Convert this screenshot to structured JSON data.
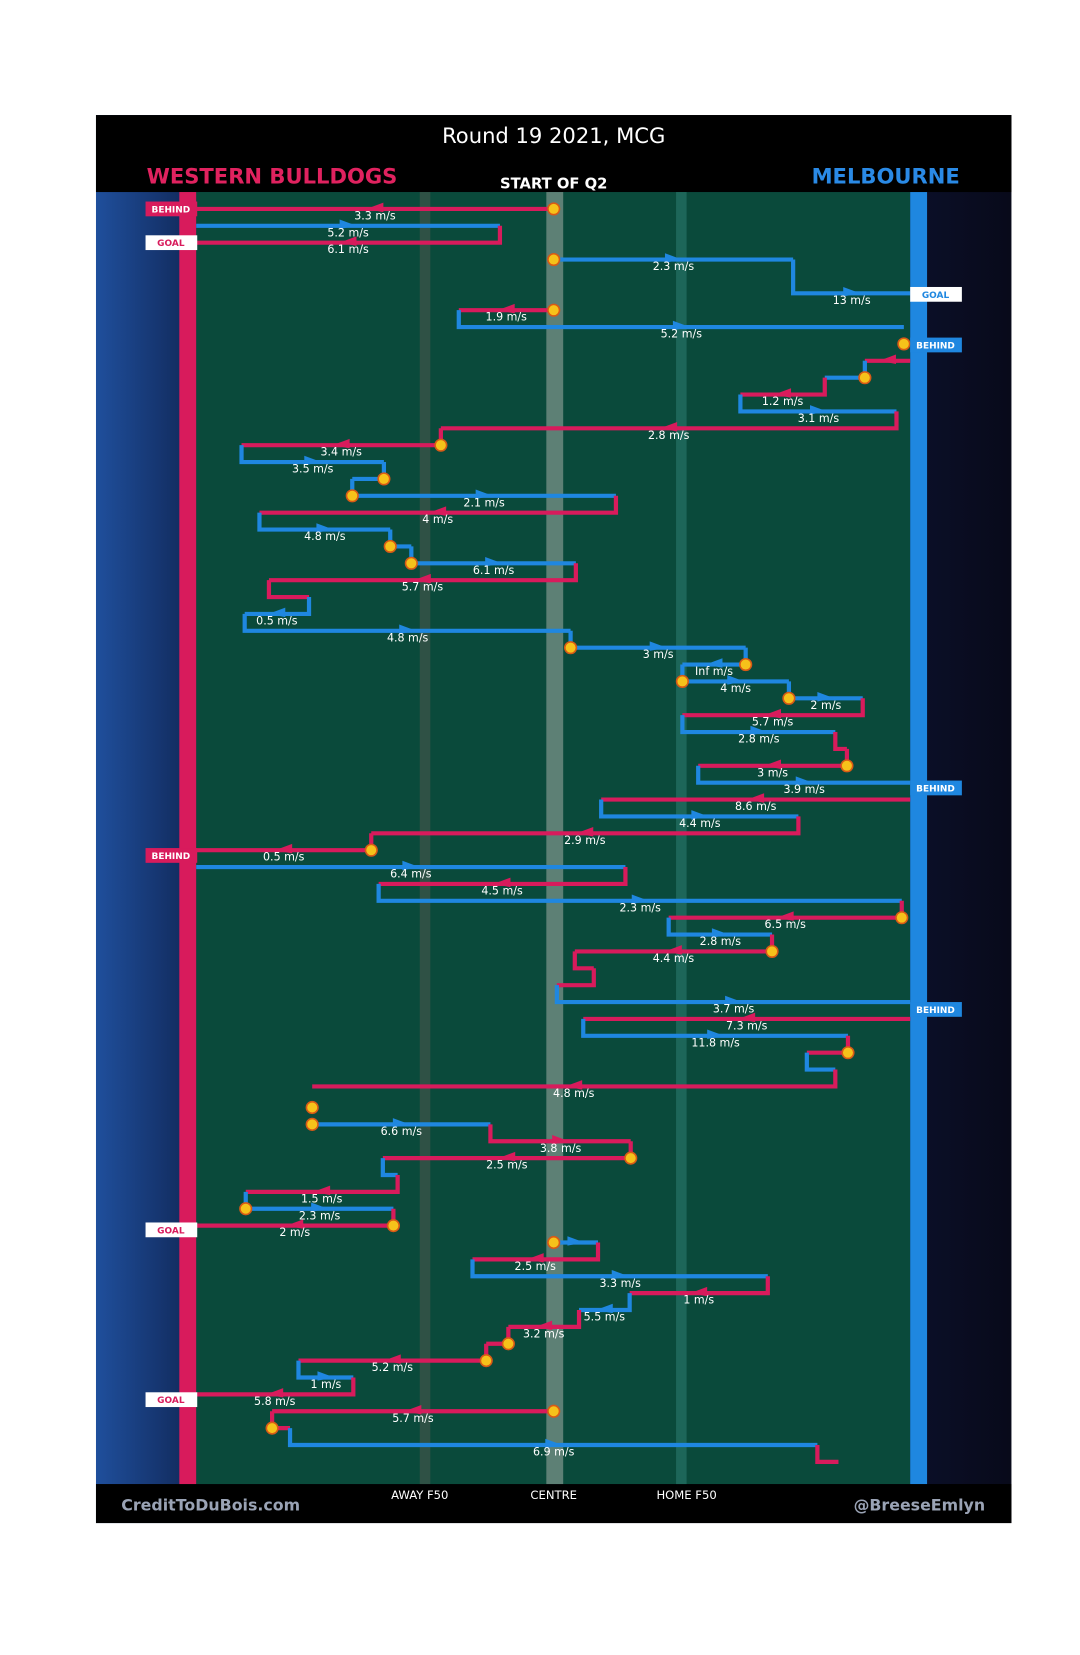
{
  "title": "Round 19 2021, MCG",
  "left_team": "WESTERN BULLDOGS",
  "right_team": "MELBOURNE",
  "period": "START OF Q2",
  "zones": [
    "AWAY F50",
    "CENTRE",
    "HOME F50"
  ],
  "credit_left": "CreditToDuBois.com",
  "credit_right": "@BreeseEmlyn",
  "left_outcomes": [
    "BEHIND",
    "GOAL",
    "BEHIND",
    "GOAL",
    "GOAL"
  ],
  "right_outcomes": [
    "GOAL",
    "BEHIND",
    "BEHIND",
    "BEHIND"
  ],
  "speeds": [
    "3.3 m/s",
    "5.2 m/s",
    "6.1 m/s",
    "2.3 m/s",
    "13 m/s",
    "1.9 m/s",
    "5.2 m/s",
    "1.2 m/s",
    "3.1 m/s",
    "2.8 m/s",
    "3.4 m/s",
    "3.5 m/s",
    "2.1 m/s",
    "4 m/s",
    "4.8 m/s",
    "6.1 m/s",
    "5.7 m/s",
    "0.5 m/s",
    "4.8 m/s",
    "3 m/s",
    "Inf m/s",
    "4 m/s",
    "2 m/s",
    "5.7 m/s",
    "2.8 m/s",
    "3 m/s",
    "3.9 m/s",
    "8.6 m/s",
    "4.4 m/s",
    "2.9 m/s",
    "0.5 m/s",
    "6.4 m/s",
    "4.5 m/s",
    "2.3 m/s",
    "6.5 m/s",
    "2.8 m/s",
    "4.4 m/s",
    "3.7 m/s",
    "7.3 m/s",
    "11.8 m/s",
    "4.8 m/s",
    "6.6 m/s",
    "3.8 m/s",
    "2.5 m/s",
    "1.5 m/s",
    "2.3 m/s",
    "2 m/s",
    "2.5 m/s",
    "3.3 m/s",
    "1 m/s",
    "5.5 m/s",
    "3.2 m/s",
    "5.2 m/s",
    "1 m/s",
    "5.8 m/s",
    "5.7 m/s",
    "6.9 m/s"
  ]
}
